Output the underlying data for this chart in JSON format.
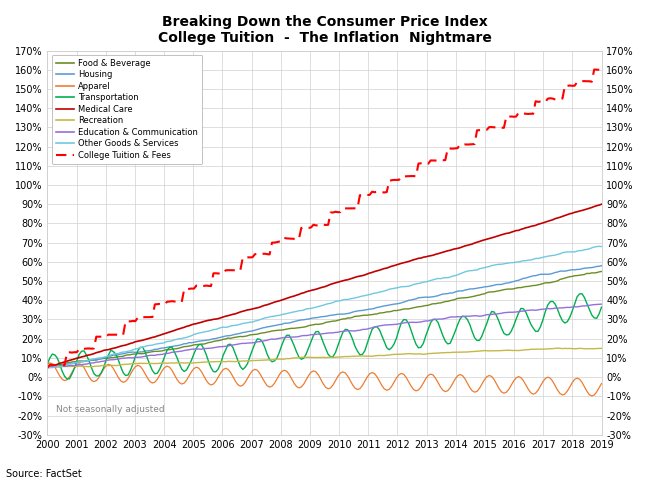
{
  "title1": "Breaking Down the Consumer Price Index",
  "title2": "College Tuition  -  The Inflation  Nightmare",
  "source": "Source: FactSet",
  "note": "Not seasonally adjusted",
  "series_colors": {
    "Food & Beverage": "#6b8e23",
    "Housing": "#5b9bd5",
    "Apparel": "#ed7d31",
    "Transportation": "#00b050",
    "Medical Care": "#c00000",
    "Recreation": "#c6b846",
    "Education & Communication": "#9370db",
    "Other Goods & Services": "#70c8e0",
    "College Tuition & Fees": "#ff0000"
  },
  "ylim": [
    -0.3,
    1.7
  ],
  "yticks": [
    -0.3,
    -0.2,
    -0.1,
    0.0,
    0.1,
    0.2,
    0.3,
    0.4,
    0.5,
    0.6,
    0.7,
    0.8,
    0.9,
    1.0,
    1.1,
    1.2,
    1.3,
    1.4,
    1.5,
    1.6,
    1.7
  ]
}
